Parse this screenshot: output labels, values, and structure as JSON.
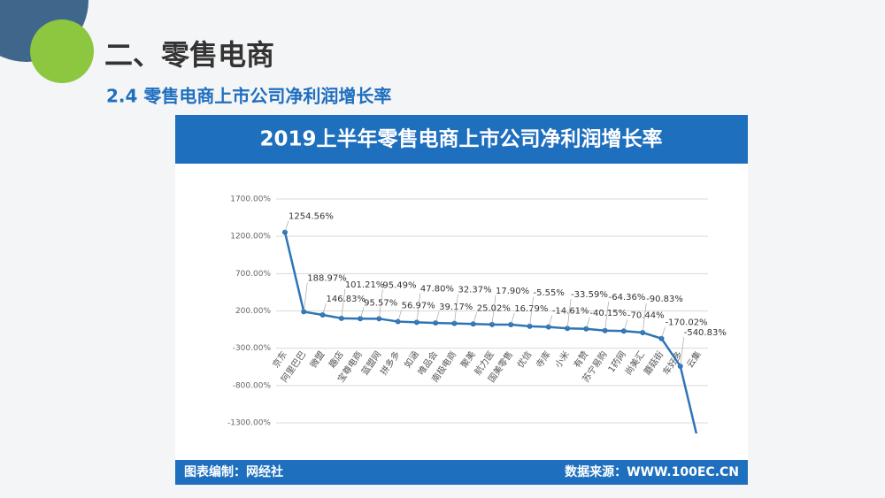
{
  "slide_title": "二、零售电商",
  "slide_subtitle": "2.4 零售电商上市公司净利润增长率",
  "footer_left": "图表编制：网经社",
  "footer_right": "数据来源：WWW.100EC.CN",
  "chart_data": {
    "type": "line",
    "title": "2019上半年零售电商上市公司净利润增长率",
    "categories": [
      "京东",
      "阿里巴巴",
      "微盟",
      "趣店",
      "宝尊电商",
      "蓝盟网",
      "拼多多",
      "如涵",
      "唯品会",
      "南极电商",
      "聚美",
      "航力医",
      "国美零售",
      "优信",
      "寺库",
      "小米",
      "有赞",
      "苏宁易购",
      "1药网",
      "尚美汇",
      "蘑菇街",
      "车好多",
      "云集"
    ],
    "series": [
      {
        "name": "净利润增长率",
        "color": "#2e75b6",
        "values": [
          1254.56,
          188.97,
          146.83,
          101.21,
          95.57,
          95.49,
          56.97,
          47.8,
          39.17,
          32.37,
          25.02,
          17.9,
          16.79,
          -5.55,
          -14.61,
          -33.59,
          -40.15,
          -64.36,
          -70.44,
          -90.83,
          -170.02,
          -540.83,
          -1600
        ],
        "value_labels": [
          "1254.56%",
          "188.97%",
          "146.83%",
          "101.21%",
          "95.57%",
          "95.49%",
          "56.97%",
          "47.80%",
          "39.17%",
          "32.37%",
          "25.02%",
          "17.90%",
          "16.79%",
          "-5.55%",
          "-14.61%",
          "-33.59%",
          "-40.15%",
          "-64.36%",
          "-70.44%",
          "-90.83%",
          "-170.02%",
          "-540.83%",
          null
        ]
      }
    ],
    "ylim": [
      -1300,
      1700
    ],
    "yticks": [
      {
        "value": 1700,
        "label": "1700.00%"
      },
      {
        "value": 1200,
        "label": "1200.00%"
      },
      {
        "value": 700,
        "label": "700.00%"
      },
      {
        "value": 200,
        "label": "200.00%"
      },
      {
        "value": -300,
        "label": "-300.00%"
      },
      {
        "value": -800,
        "label": "-800.00%"
      },
      {
        "value": -1300,
        "label": "-1300.00%"
      }
    ],
    "grid": true
  }
}
